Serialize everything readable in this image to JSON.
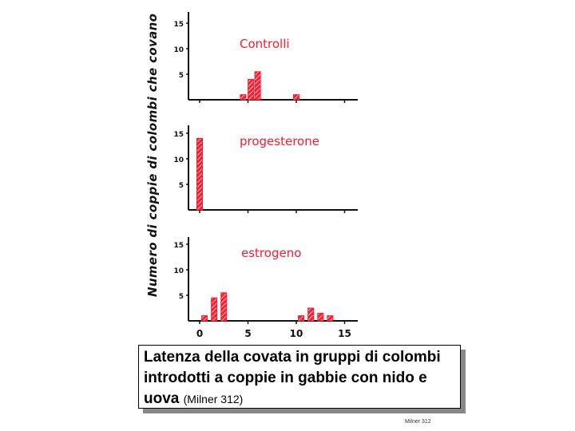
{
  "chart_data": [
    {
      "type": "bar",
      "title": "Controlli",
      "ylabel": "Numero di coppie di colombi che covano",
      "xlim": [
        -1,
        16
      ],
      "ylim": [
        0,
        17
      ],
      "yticks": [
        "5",
        "10",
        "15"
      ],
      "x": [
        4.5,
        5.3,
        6,
        10
      ],
      "values": [
        1,
        4,
        5.5,
        1
      ],
      "color": "#ff1a2e"
    },
    {
      "type": "bar",
      "title": "progesterone",
      "xlim": [
        -1,
        16
      ],
      "ylim": [
        0,
        17
      ],
      "yticks": [
        "5",
        "10",
        "15"
      ],
      "x": [
        0
      ],
      "values": [
        14
      ],
      "color": "#ff1a2e"
    },
    {
      "type": "bar",
      "title": "estrogeno",
      "xlim": [
        -1,
        16
      ],
      "ylim": [
        0,
        17
      ],
      "yticks": [
        "5",
        "10",
        "15"
      ],
      "xticks": [
        "0",
        "5",
        "10",
        "15"
      ],
      "x": [
        0.5,
        1.5,
        2.5,
        10.5,
        11.5,
        12.5,
        13.5
      ],
      "values": [
        1,
        4.5,
        5.5,
        1,
        2.5,
        1.5,
        1
      ],
      "color": "#ff1a2e"
    }
  ],
  "caption": {
    "main": "Latenza della covata in gruppi di colombi introdotti a coppie in gabbie con nido e uova",
    "source": "(Milner 312)"
  },
  "credit": "Milner 312"
}
